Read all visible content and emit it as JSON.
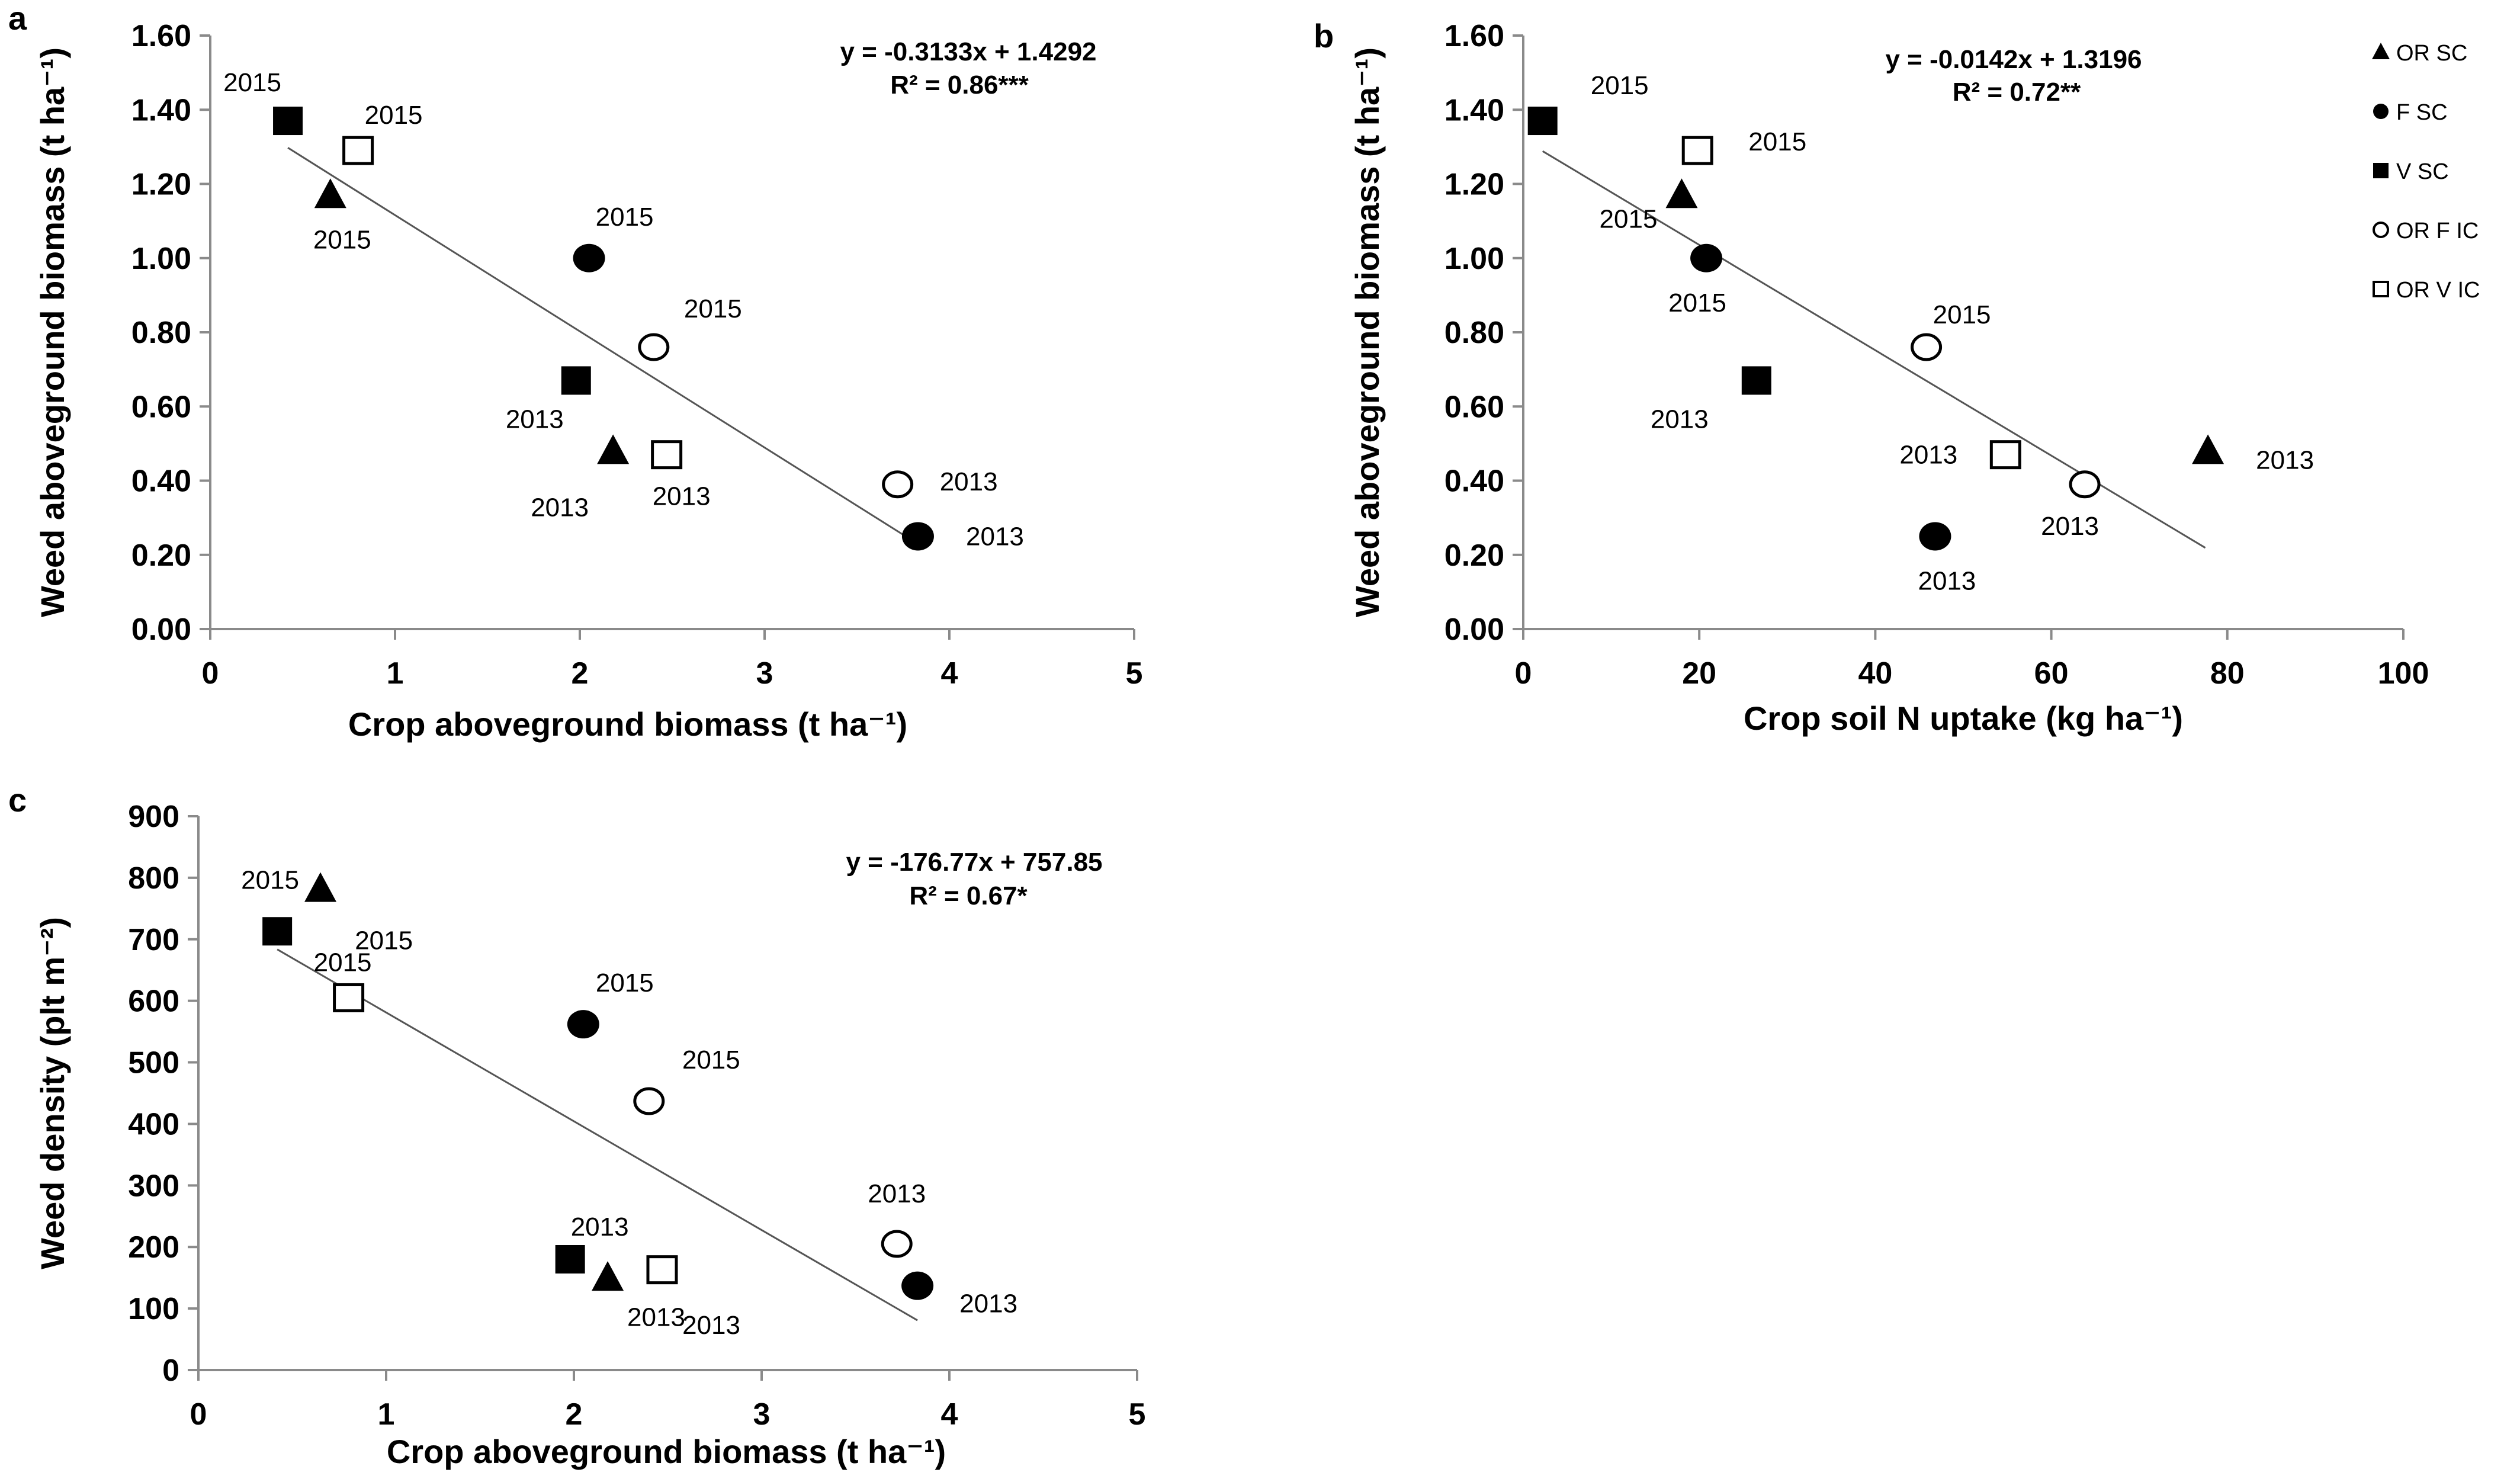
{
  "legend": [
    {
      "marker": "triangle-filled",
      "label": "OR SC"
    },
    {
      "marker": "circle-filled",
      "label": "F SC"
    },
    {
      "marker": "square-filled",
      "label": "V SC"
    },
    {
      "marker": "circle-open",
      "label": "OR F IC"
    },
    {
      "marker": "square-open",
      "label": "OR V IC"
    }
  ],
  "chart_data": [
    {
      "panel": "a",
      "type": "scatter",
      "xlabel": "Crop aboveground biomass (t ha⁻¹)",
      "ylabel": "Weed aboveground biomass (t ha⁻¹)",
      "xlim": [
        0,
        5
      ],
      "ylim": [
        0,
        1.6
      ],
      "xticks": [
        0,
        1,
        2,
        3,
        4,
        5
      ],
      "xtick_labels": [
        "0",
        "1",
        "2",
        "3",
        "4",
        "5"
      ],
      "yticks": [
        0,
        0.2,
        0.4,
        0.6,
        0.8,
        1.0,
        1.2,
        1.4,
        1.6
      ],
      "ytick_labels": [
        "0.00",
        "0.20",
        "0.40",
        "0.60",
        "0.80",
        "1.00",
        "1.20",
        "1.40",
        "1.60"
      ],
      "equation": "y = -0.3133x + 1.4292",
      "r2": "R² = 0.86***",
      "trendline": {
        "slope": -0.3133,
        "intercept": 1.4292,
        "x_from": 0.42,
        "x_to": 3.83
      },
      "points": [
        {
          "series": "V SC",
          "year": "2015",
          "x": 0.42,
          "y": 1.37
        },
        {
          "series": "OR V IC",
          "year": "2015",
          "x": 0.8,
          "y": 1.29
        },
        {
          "series": "OR SC",
          "year": "2015",
          "x": 0.65,
          "y": 1.17
        },
        {
          "series": "F SC",
          "year": "2015",
          "x": 2.05,
          "y": 1.0
        },
        {
          "series": "OR F IC",
          "year": "2015",
          "x": 2.4,
          "y": 0.76
        },
        {
          "series": "V SC",
          "year": "2013",
          "x": 1.98,
          "y": 0.67
        },
        {
          "series": "OR SC",
          "year": "2013",
          "x": 2.18,
          "y": 0.48
        },
        {
          "series": "OR V IC",
          "year": "2013",
          "x": 2.47,
          "y": 0.47
        },
        {
          "series": "OR F IC",
          "year": "2013",
          "x": 3.72,
          "y": 0.39
        },
        {
          "series": "F SC",
          "year": "2013",
          "x": 3.83,
          "y": 0.25
        }
      ]
    },
    {
      "panel": "b",
      "type": "scatter",
      "xlabel": "Crop soil N uptake (kg ha⁻¹)",
      "ylabel": "Weed aboveground biomass (t ha⁻¹)",
      "xlim": [
        0,
        100
      ],
      "ylim": [
        0,
        1.6
      ],
      "xticks": [
        0,
        20,
        40,
        60,
        80,
        100
      ],
      "xtick_labels": [
        "0",
        "20",
        "40",
        "60",
        "80",
        "100"
      ],
      "yticks": [
        0,
        0.2,
        0.4,
        0.6,
        0.8,
        1.0,
        1.2,
        1.4,
        1.6
      ],
      "ytick_labels": [
        "0.00",
        "0.20",
        "0.40",
        "0.60",
        "0.80",
        "1.00",
        "1.20",
        "1.40",
        "1.60"
      ],
      "equation": "y = -0.0142x + 1.3196",
      "r2": "R² = 0.72**",
      "trendline": {
        "slope": -0.0142,
        "intercept": 1.3196,
        "x_from": 2.2,
        "x_to": 77.5
      },
      "points": [
        {
          "series": "V SC",
          "year": "2015",
          "x": 2.2,
          "y": 1.37
        },
        {
          "series": "OR V IC",
          "year": "2015",
          "x": 19.8,
          "y": 1.29
        },
        {
          "series": "OR SC",
          "year": "2015",
          "x": 18.0,
          "y": 1.17
        },
        {
          "series": "F SC",
          "year": "2015",
          "x": 20.8,
          "y": 1.0
        },
        {
          "series": "OR F IC",
          "year": "2015",
          "x": 45.8,
          "y": 0.76
        },
        {
          "series": "V SC",
          "year": "2013",
          "x": 26.5,
          "y": 0.67
        },
        {
          "series": "OR V IC",
          "year": "2013",
          "x": 54.8,
          "y": 0.47
        },
        {
          "series": "OR F IC",
          "year": "2013",
          "x": 63.8,
          "y": 0.39
        },
        {
          "series": "OR SC",
          "year": "2013",
          "x": 77.8,
          "y": 0.48
        },
        {
          "series": "F SC",
          "year": "2013",
          "x": 46.8,
          "y": 0.25
        }
      ]
    },
    {
      "panel": "c",
      "type": "scatter",
      "xlabel": "Crop aboveground biomass (t ha⁻¹)",
      "ylabel": "Weed density (plt m⁻²)",
      "xlim": [
        0,
        5
      ],
      "ylim": [
        0,
        900
      ],
      "xticks": [
        0,
        1,
        2,
        3,
        4,
        5
      ],
      "xtick_labels": [
        "0",
        "1",
        "2",
        "3",
        "4",
        "5"
      ],
      "yticks": [
        0,
        100,
        200,
        300,
        400,
        500,
        600,
        700,
        800,
        900
      ],
      "ytick_labels": [
        "0",
        "100",
        "200",
        "300",
        "400",
        "500",
        "600",
        "700",
        "800",
        "900"
      ],
      "equation": "y = -176.77x + 757.85",
      "r2": "R² = 0.67*",
      "trendline": {
        "slope": -176.77,
        "intercept": 757.85,
        "x_from": 0.42,
        "x_to": 3.83
      },
      "points": [
        {
          "series": "OR SC",
          "year": "2015",
          "x": 0.65,
          "y": 782
        },
        {
          "series": "V SC",
          "year": "2015",
          "x": 0.42,
          "y": 713
        },
        {
          "series": "OR V IC",
          "year": "2015",
          "x": 0.8,
          "y": 605
        },
        {
          "series": "F SC",
          "year": "2015",
          "x": 2.05,
          "y": 562
        },
        {
          "series": "OR F IC",
          "year": "2015",
          "x": 2.4,
          "y": 437
        },
        {
          "series": "V SC",
          "year": "2013",
          "x": 1.98,
          "y": 180
        },
        {
          "series": "OR SC",
          "year": "2013",
          "x": 2.18,
          "y": 150
        },
        {
          "series": "OR V IC",
          "year": "2013",
          "x": 2.47,
          "y": 163
        },
        {
          "series": "OR F IC",
          "year": "2013",
          "x": 3.72,
          "y": 205
        },
        {
          "series": "F SC",
          "year": "2013",
          "x": 3.83,
          "y": 137
        }
      ]
    }
  ]
}
